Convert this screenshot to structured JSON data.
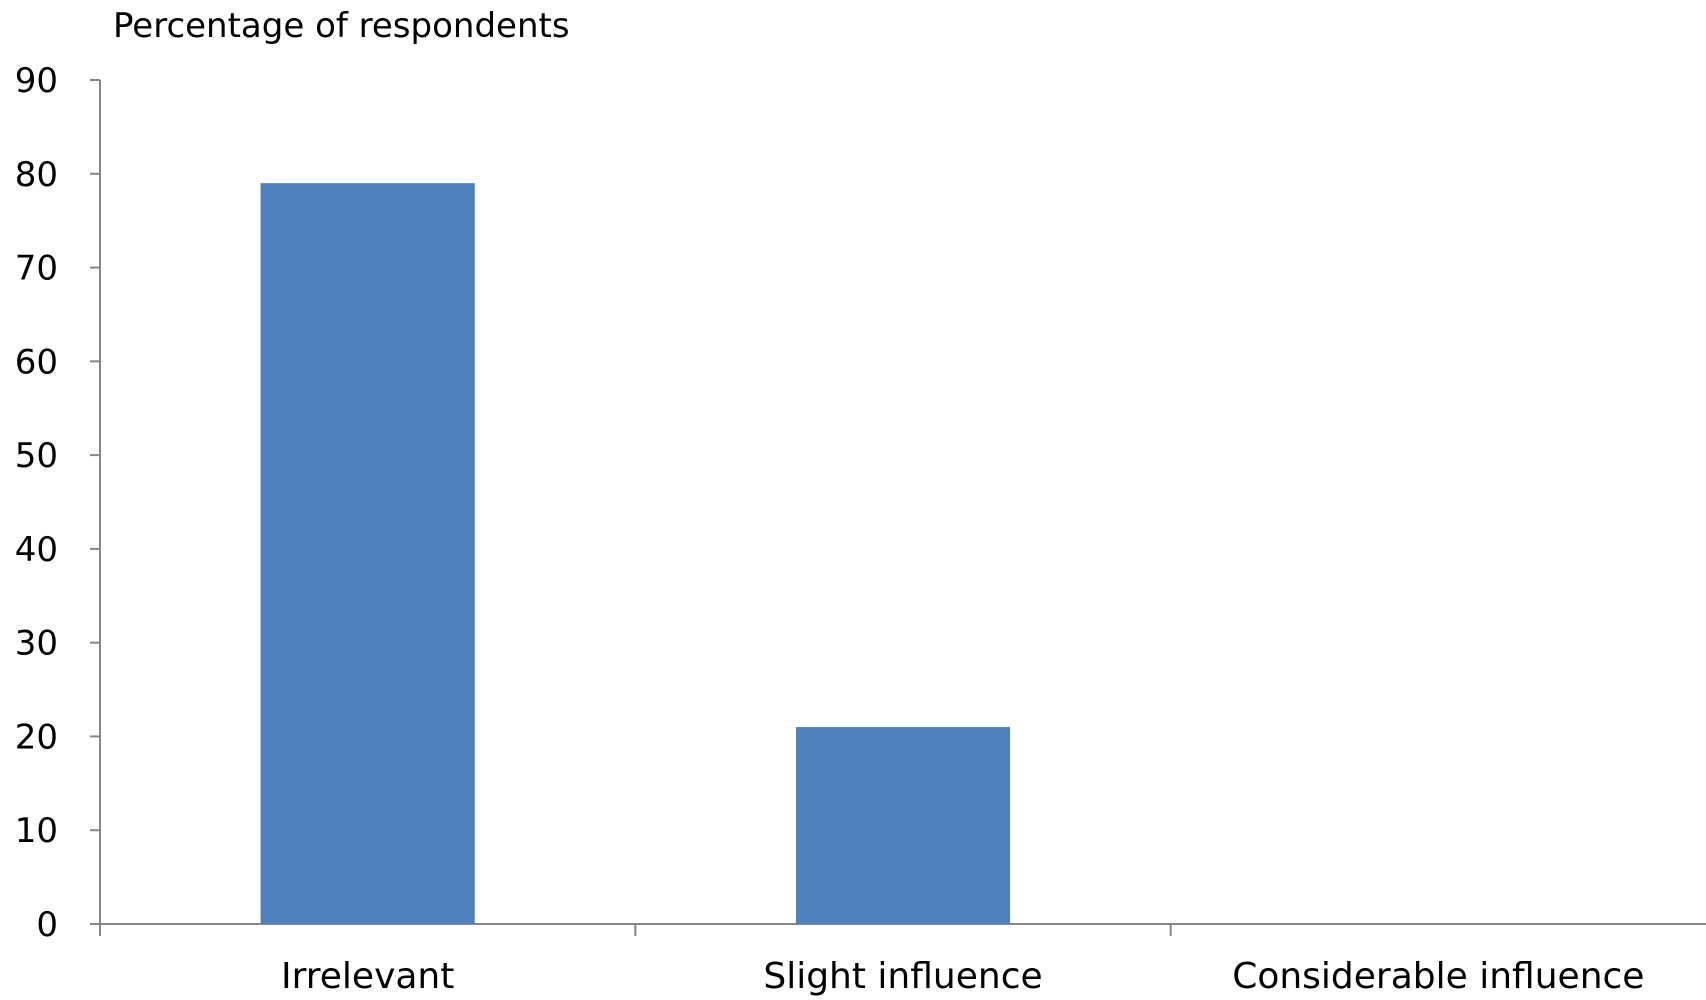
{
  "chart_data": {
    "type": "bar",
    "title": "",
    "ylabel": "Percentage of respondents",
    "xlabel": "",
    "categories": [
      "Irrelevant",
      "Slight influence",
      "Considerable influence"
    ],
    "series": [
      {
        "values": [
          79,
          21,
          0
        ]
      }
    ],
    "ylim": [
      0,
      90
    ],
    "yticks": [
      0,
      10,
      20,
      30,
      40,
      50,
      60,
      70,
      80,
      90
    ],
    "grid": false,
    "legend": "none",
    "colors": {
      "bar": "#4f81bd",
      "axis": "#868686",
      "text": "#000000"
    }
  }
}
